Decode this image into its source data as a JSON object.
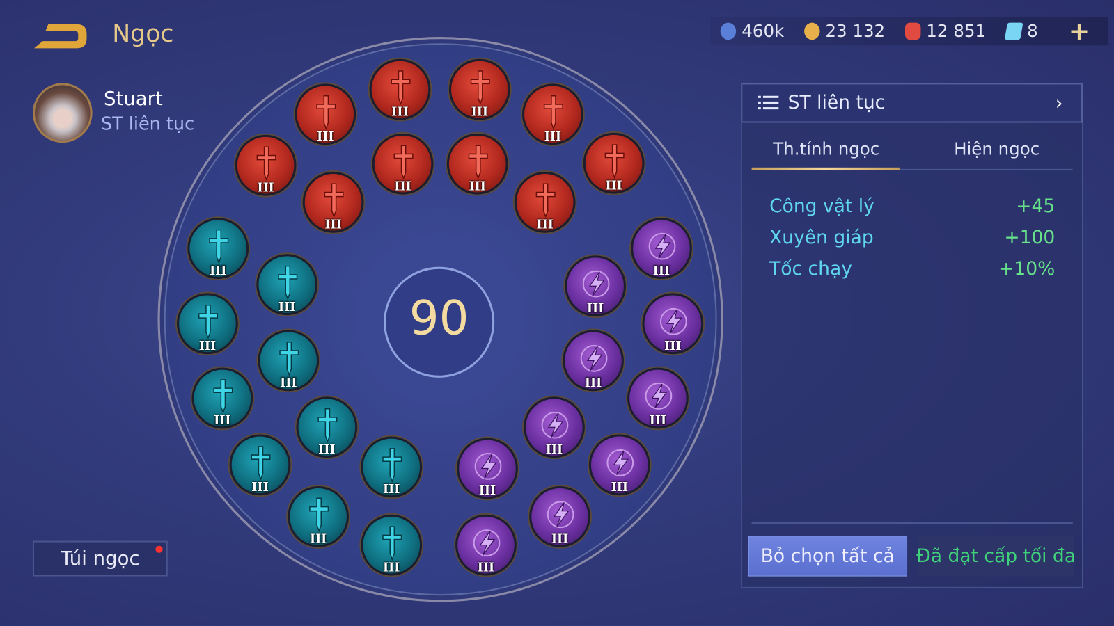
{
  "header": {
    "title": "Ngọc",
    "back_icon": "back-arrow-icon"
  },
  "hero": {
    "name": "Stuart",
    "preset": "ST liên tục"
  },
  "currency": [
    {
      "icon": "blue-coin-icon",
      "value": "460k",
      "color": "#5a7fd8"
    },
    {
      "icon": "gold-coin-icon",
      "value": "23 132",
      "color": "#e8b04a"
    },
    {
      "icon": "red-gem-icon",
      "value": "12 851",
      "color": "#e04a40"
    },
    {
      "icon": "card-icon",
      "value": "8",
      "color": "#7ad4f4"
    }
  ],
  "board": {
    "level": "90",
    "gems": [
      {
        "type": "red",
        "level": "III"
      },
      {
        "type": "red",
        "level": "III"
      },
      {
        "type": "red",
        "level": "III"
      },
      {
        "type": "red",
        "level": "III"
      },
      {
        "type": "red",
        "level": "III"
      },
      {
        "type": "red",
        "level": "III"
      },
      {
        "type": "red",
        "level": "III"
      },
      {
        "type": "red",
        "level": "III"
      },
      {
        "type": "red",
        "level": "III"
      },
      {
        "type": "red",
        "level": "III"
      },
      {
        "type": "teal",
        "level": "III"
      },
      {
        "type": "teal",
        "level": "III"
      },
      {
        "type": "teal",
        "level": "III"
      },
      {
        "type": "teal",
        "level": "III"
      },
      {
        "type": "teal",
        "level": "III"
      },
      {
        "type": "teal",
        "level": "III"
      },
      {
        "type": "teal",
        "level": "III"
      },
      {
        "type": "teal",
        "level": "III"
      },
      {
        "type": "teal",
        "level": "III"
      },
      {
        "type": "teal",
        "level": "III"
      },
      {
        "type": "purple",
        "level": "III"
      },
      {
        "type": "purple",
        "level": "III"
      },
      {
        "type": "purple",
        "level": "III"
      },
      {
        "type": "purple",
        "level": "III"
      },
      {
        "type": "purple",
        "level": "III"
      },
      {
        "type": "purple",
        "level": "III"
      },
      {
        "type": "purple",
        "level": "III"
      },
      {
        "type": "purple",
        "level": "III"
      },
      {
        "type": "purple",
        "level": "III"
      },
      {
        "type": "purple",
        "level": "III"
      }
    ]
  },
  "bag": {
    "label": "Túi ngọc"
  },
  "panel": {
    "preset_label": "ST liên tục",
    "tabs": [
      "Th.tính ngọc",
      "Hiện ngọc"
    ],
    "active_tab": 0,
    "stats": [
      {
        "name": "Công vật lý",
        "value": "+45"
      },
      {
        "name": "Xuyên giáp",
        "value": "+100"
      },
      {
        "name": "Tốc chạy",
        "value": "+10%"
      }
    ],
    "deselect_label": "Bỏ chọn tất cả",
    "max_label": "Đã đạt cấp tối đa"
  }
}
